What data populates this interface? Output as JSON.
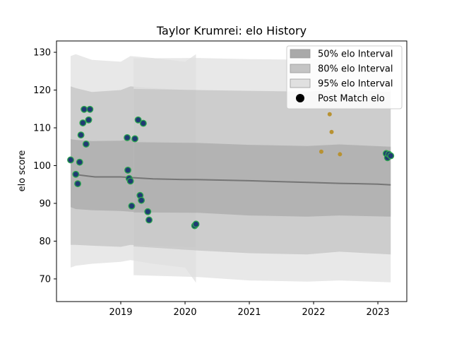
{
  "chart_data": {
    "type": "scatter",
    "title": "Taylor Krumrei: elo History",
    "xlabel": "",
    "ylabel": "elo score",
    "xlim": [
      2018.0,
      2023.45
    ],
    "ylim": [
      64,
      133
    ],
    "xticks": [
      2019,
      2020,
      2021,
      2022,
      2023
    ],
    "yticks": [
      70,
      80,
      90,
      100,
      110,
      120,
      130
    ],
    "grid": false,
    "legend": {
      "placement": "top-right",
      "entries": [
        {
          "label": "50% elo Interval",
          "kind": "band",
          "color": "#a9a9a9"
        },
        {
          "label": "80% elo Interval",
          "kind": "band",
          "color": "#c4c4c4"
        },
        {
          "label": "95% elo Interval",
          "kind": "band",
          "color": "#e0e0e0"
        },
        {
          "label": "Post Match elo",
          "kind": "marker",
          "color": "#000000"
        }
      ]
    },
    "colors": {
      "band50": "#a9a9a9",
      "band80": "#c4c4c4",
      "band95": "#e0e0e0",
      "mean_line": "#757575",
      "point_fill": "#1f3b73",
      "point_edge": "#2ea84f",
      "point_gold": "#b89232"
    },
    "mean_series": {
      "x": [
        2018.28,
        2018.35,
        2018.6,
        2019.0,
        2019.2,
        2019.5,
        2020.0,
        2020.17,
        2021.0,
        2022.0,
        2022.4,
        2023.0,
        2023.2
      ],
      "y": [
        97.6,
        97.5,
        97.0,
        97.0,
        96.8,
        96.5,
        96.3,
        96.3,
        96.0,
        95.5,
        95.3,
        95.1,
        94.9
      ]
    },
    "band_segments": [
      {
        "x": [
          2018.22,
          2018.3,
          2018.55,
          2019.0,
          2019.15,
          2019.5,
          2020.0,
          2020.17
        ],
        "lo50": [
          89,
          88.5,
          88.2,
          88,
          87.8,
          87.6,
          87.5,
          87.5
        ],
        "hi50": [
          107,
          106.8,
          106.5,
          106.6,
          107,
          106.6,
          106.2,
          106.2
        ],
        "lo80": [
          79,
          79,
          78.8,
          78.5,
          79,
          78.8,
          78.5,
          78.5
        ],
        "hi80": [
          121,
          120.5,
          119.5,
          120,
          121,
          120.5,
          120,
          120
        ],
        "lo95": [
          73,
          73.5,
          74,
          74.5,
          75,
          74,
          73,
          69
        ],
        "hi95": [
          129,
          129.5,
          128,
          127.5,
          129,
          128.5,
          127.5,
          129.5
        ]
      },
      {
        "x": [
          2019.2,
          2020.2,
          2021.0,
          2021.9,
          2022.4,
          2023.2
        ],
        "lo50": [
          87.6,
          87.5,
          86.8,
          86.5,
          86.8,
          86.5
        ],
        "hi50": [
          106.2,
          106.0,
          105.5,
          105.2,
          105.6,
          105.0
        ],
        "lo80": [
          78.6,
          77.5,
          76.8,
          76.5,
          77.2,
          76.5
        ],
        "hi80": [
          120.3,
          120.0,
          119.8,
          119.6,
          120.0,
          119.5
        ],
        "lo95": [
          71.0,
          70.5,
          69.6,
          69.3,
          69.6,
          69.1
        ],
        "hi95": [
          128.4,
          128.5,
          128.2,
          128.0,
          128.5,
          128.0
        ]
      }
    ],
    "points": [
      {
        "x": 2018.22,
        "y": 101.5,
        "style": "green"
      },
      {
        "x": 2018.3,
        "y": 97.7,
        "style": "green"
      },
      {
        "x": 2018.33,
        "y": 95.2,
        "style": "green"
      },
      {
        "x": 2018.36,
        "y": 100.9,
        "style": "green"
      },
      {
        "x": 2018.38,
        "y": 108.1,
        "style": "green"
      },
      {
        "x": 2018.41,
        "y": 111.3,
        "style": "green"
      },
      {
        "x": 2018.43,
        "y": 114.9,
        "style": "green"
      },
      {
        "x": 2018.46,
        "y": 105.7,
        "style": "green"
      },
      {
        "x": 2018.5,
        "y": 112.1,
        "style": "green"
      },
      {
        "x": 2018.52,
        "y": 114.9,
        "style": "green"
      },
      {
        "x": 2019.1,
        "y": 107.4,
        "style": "green"
      },
      {
        "x": 2019.11,
        "y": 98.8,
        "style": "green"
      },
      {
        "x": 2019.13,
        "y": 96.6,
        "style": "green"
      },
      {
        "x": 2019.15,
        "y": 95.9,
        "style": "green"
      },
      {
        "x": 2019.17,
        "y": 89.3,
        "style": "green"
      },
      {
        "x": 2019.22,
        "y": 107.1,
        "style": "green"
      },
      {
        "x": 2019.27,
        "y": 112.1,
        "style": "green"
      },
      {
        "x": 2019.3,
        "y": 92.1,
        "style": "green"
      },
      {
        "x": 2019.32,
        "y": 90.8,
        "style": "green"
      },
      {
        "x": 2019.35,
        "y": 111.2,
        "style": "green"
      },
      {
        "x": 2019.42,
        "y": 87.8,
        "style": "green"
      },
      {
        "x": 2019.44,
        "y": 85.6,
        "style": "green"
      },
      {
        "x": 2020.15,
        "y": 84.1,
        "style": "green"
      },
      {
        "x": 2020.17,
        "y": 84.5,
        "style": "green"
      },
      {
        "x": 2022.12,
        "y": 103.7,
        "style": "gold"
      },
      {
        "x": 2022.25,
        "y": 113.6,
        "style": "gold"
      },
      {
        "x": 2022.28,
        "y": 108.9,
        "style": "gold"
      },
      {
        "x": 2022.41,
        "y": 103.0,
        "style": "gold"
      },
      {
        "x": 2023.13,
        "y": 103.2,
        "style": "green"
      },
      {
        "x": 2023.15,
        "y": 102.1,
        "style": "green"
      },
      {
        "x": 2023.17,
        "y": 103.0,
        "style": "green"
      },
      {
        "x": 2023.2,
        "y": 102.6,
        "style": "green"
      }
    ]
  }
}
